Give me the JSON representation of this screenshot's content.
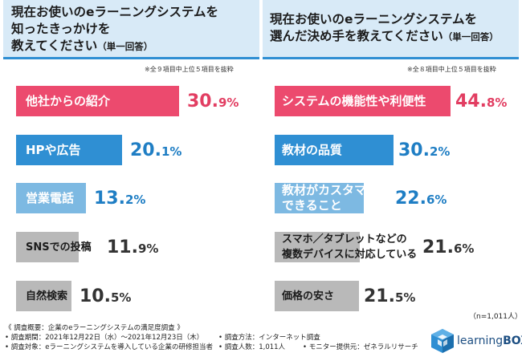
{
  "colors": {
    "pink": "#ec4a6e",
    "blue_dark": "#2f8fd3",
    "blue_light": "#7db9e2",
    "gray": "#b9b9b9",
    "value_pink": "#e23e62",
    "value_blue": "#1f7ec4",
    "value_gray": "#333333"
  },
  "chart_data": [
    {
      "type": "bar",
      "orientation": "horizontal",
      "title_lines": [
        "現在お使いのeラーニングシステムを",
        "知ったきっかけを",
        "教えてください"
      ],
      "title_suffix": "（単一回答）",
      "note": "※全９項目中上位５項目を抜粋",
      "unit": "%",
      "categories": [
        "他社からの紹介",
        "HPや広告",
        "営業電話",
        "SNSでの投稿",
        "自然検索"
      ],
      "values": [
        30.9,
        20.1,
        13.2,
        11.9,
        10.5
      ],
      "value_int": [
        "30.",
        "20.",
        "13.",
        "11.",
        "10."
      ],
      "value_dec": [
        "9%",
        "1%",
        "2%",
        "9%",
        "5%"
      ],
      "styles": [
        "pink",
        "blue_dark",
        "blue_light",
        "gray",
        "gray"
      ]
    },
    {
      "type": "bar",
      "orientation": "horizontal",
      "title_lines": [
        "現在お使いのeラーニングシステムを",
        "選んだ決め手を教えてください"
      ],
      "title_suffix": "（単一回答）",
      "note": "※全８項目中上位５項目を抜粋",
      "unit": "%",
      "categories": [
        "システムの機能性や利便性",
        "教材の品質",
        "教材がカスタマイズできること",
        "スマホ／タブレットなどの複数デバイスに対応している",
        "価格の安さ"
      ],
      "label_lines": [
        [
          "システムの機能性や利便性"
        ],
        [
          "教材の品質"
        ],
        [
          "教材がカスタマイズ",
          "できること"
        ],
        [
          "スマホ／タブレットなどの",
          "複数デバイスに対応している"
        ],
        [
          "価格の安さ"
        ]
      ],
      "values": [
        44.8,
        30.2,
        22.6,
        21.6,
        21.5
      ],
      "value_int": [
        "44.",
        "30.",
        "22.",
        "21.",
        "21."
      ],
      "value_dec": [
        "8%",
        "2%",
        "6%",
        "6%",
        "5%"
      ],
      "styles": [
        "pink",
        "blue_dark",
        "blue_light",
        "gray",
        "gray"
      ]
    }
  ],
  "sample_note": "（n=1,011人）",
  "footer": {
    "survey_title": "《 調査概要：企業のeラーニングシステムの満足度調査 》",
    "period": "• 調査期間：2021年12月22日（水）〜2021年12月23日（木）",
    "method": "• 調査方法：インターネット調査",
    "target": "• 調査対象：eラーニングシステムを導入している企業の研修担当者",
    "respondents": "• 調査人数：1,011人",
    "monitor": "• モニター提供元：ゼネラルリサーチ"
  },
  "logo": {
    "name_a": "learning",
    "name_b": "BOX"
  }
}
